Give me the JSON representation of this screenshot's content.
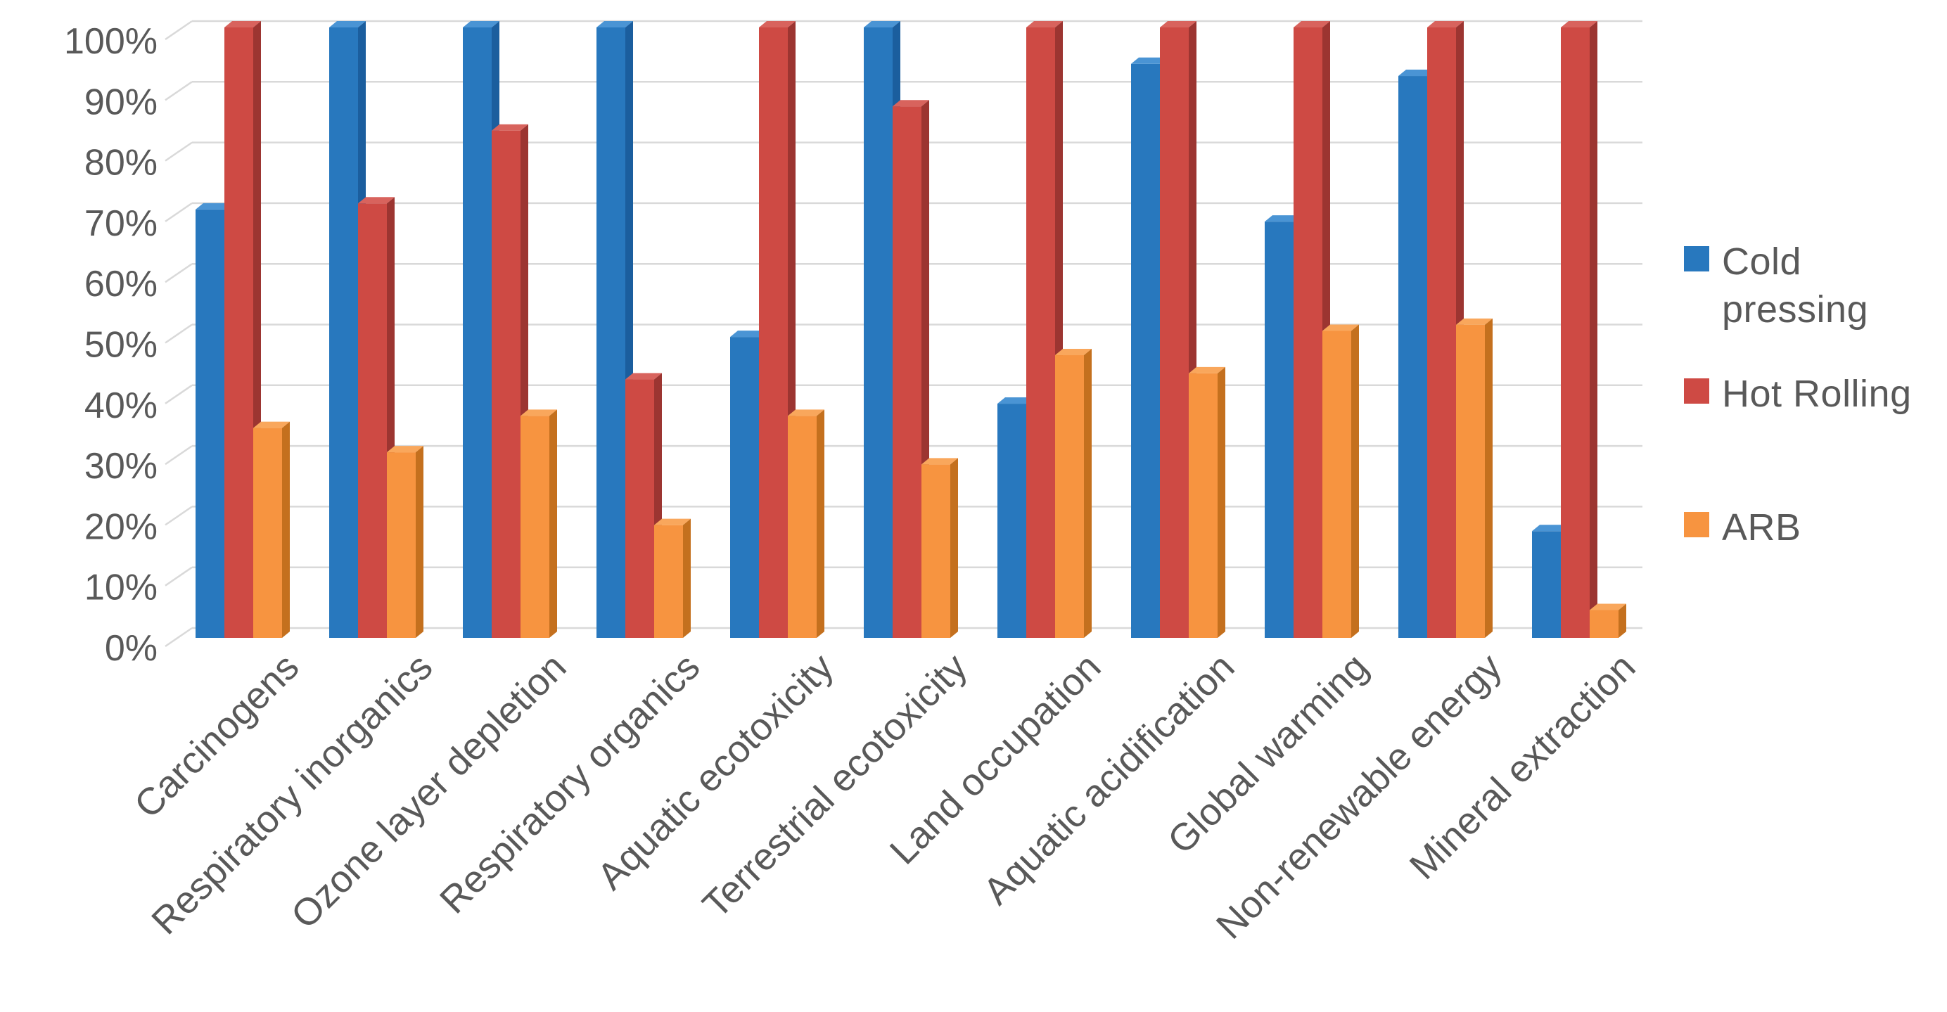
{
  "chart_data": {
    "type": "bar",
    "style": "3d-clustered-column",
    "title": "",
    "xlabel": "",
    "ylabel": "",
    "categories": [
      "Carcinogens",
      "Respiratory inorganics",
      "Ozone layer depletion",
      "Respiratory organics",
      "Aquatic ecotoxicity",
      "Terrestrial ecotoxicity",
      "Land occupation",
      "Aquatic acidification",
      "Global warming",
      "Non-renewable energy",
      "Mineral extraction"
    ],
    "series": [
      {
        "name": "Cold pressing",
        "color": "#2878BE",
        "color_top": "#4A94D4",
        "color_side": "#1B5E9E",
        "values": [
          70,
          100,
          100,
          100,
          49,
          100,
          38,
          94,
          68,
          92,
          17
        ]
      },
      {
        "name": "Hot Rolling",
        "color": "#CE4A44",
        "color_top": "#D8635D",
        "color_side": "#9C3531",
        "values": [
          100,
          71,
          83,
          42,
          100,
          87,
          100,
          100,
          100,
          100,
          100
        ]
      },
      {
        "name": "ARB",
        "color": "#F79440",
        "color_top": "#F9A75C",
        "color_side": "#C4701E",
        "values": [
          34,
          30,
          36,
          18,
          36,
          28,
          46,
          43,
          50,
          51,
          4
        ]
      }
    ],
    "y_axis": {
      "min": 0,
      "max": 100,
      "step": 10,
      "tick_suffix": "%",
      "tick_labels": [
        "0%",
        "10%",
        "20%",
        "30%",
        "40%",
        "50%",
        "60%",
        "70%",
        "80%",
        "90%",
        "100%"
      ]
    },
    "ylim": [
      0,
      100
    ],
    "grid": true,
    "legend_position": "right",
    "grid_color": "#D9D9D9",
    "text_color": "#595959"
  }
}
